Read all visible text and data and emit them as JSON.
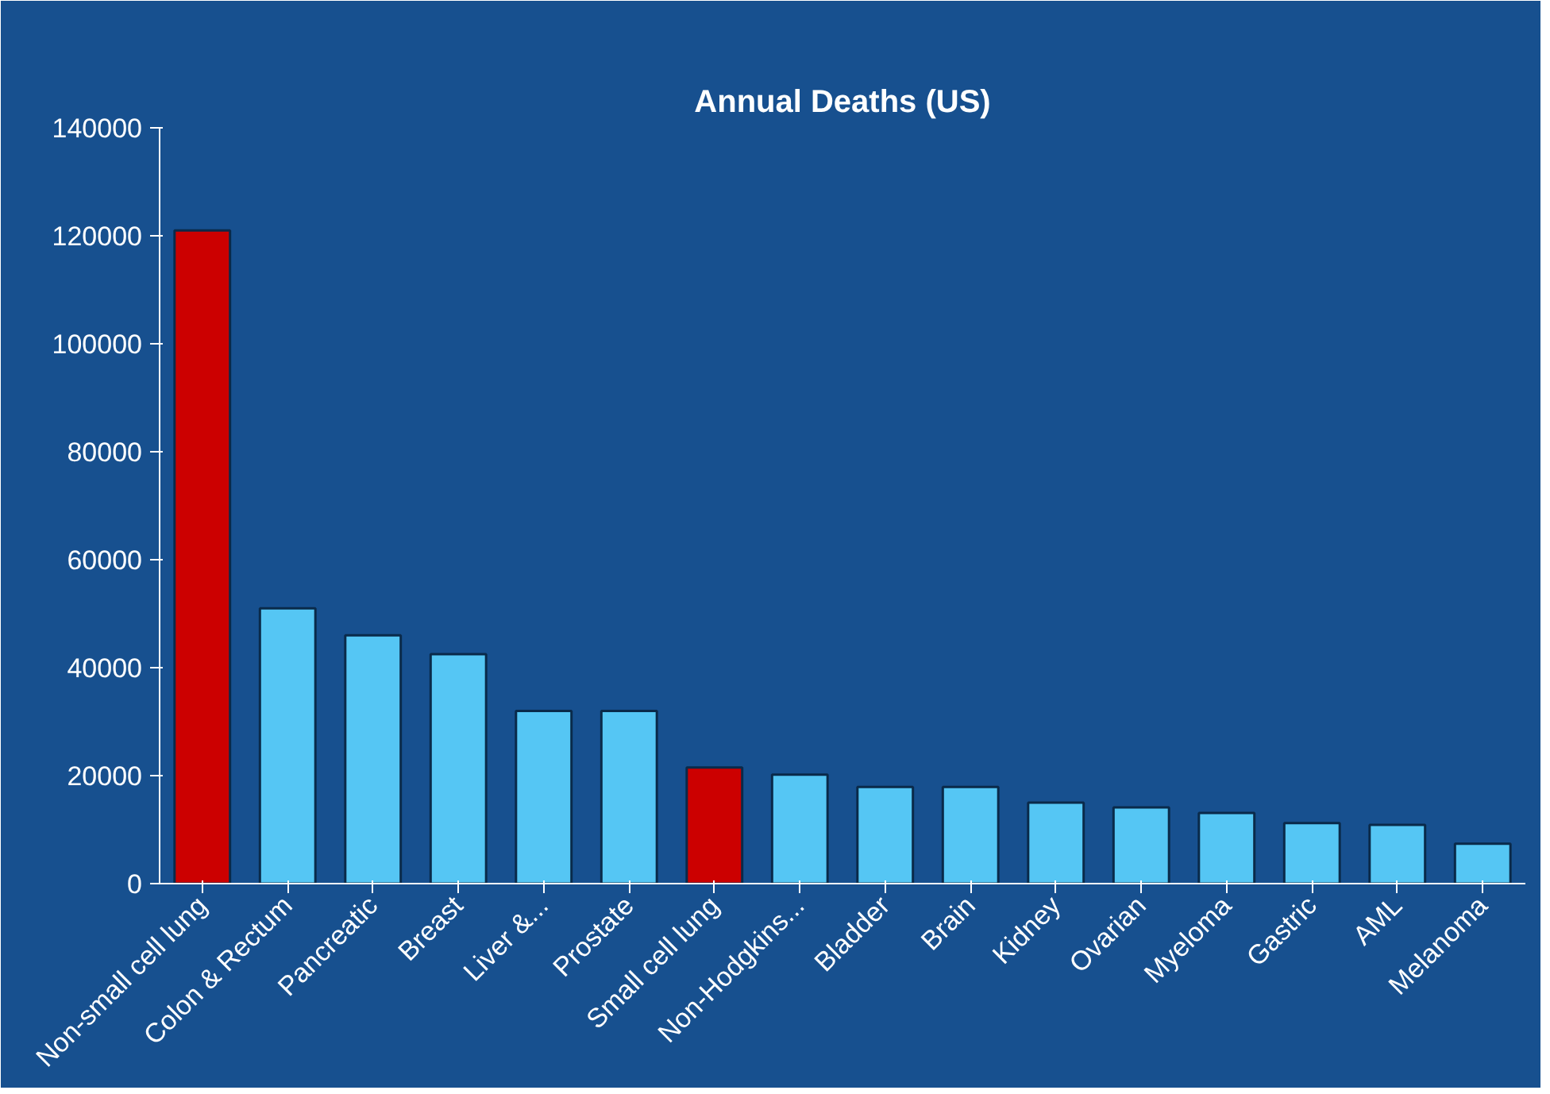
{
  "chart_data": {
    "type": "bar",
    "title": "Annual Deaths (US)",
    "categories": [
      "Non-small cell lung",
      "Colon & Rectum",
      "Pancreatic",
      "Breast",
      "Liver &...",
      "Prostate",
      "Small cell lung",
      "Non-Hodgkins...",
      "Bladder",
      "Brain",
      "Kidney",
      "Ovarian",
      "Myeloma",
      "Gastric",
      "AML",
      "Melanoma"
    ],
    "values": [
      121000,
      51000,
      46000,
      42500,
      32000,
      32000,
      21500,
      20200,
      17900,
      17900,
      15000,
      14100,
      13100,
      11200,
      10900,
      7400
    ],
    "colors": [
      "#cc0000",
      "#55c6f4",
      "#55c6f4",
      "#55c6f4",
      "#55c6f4",
      "#55c6f4",
      "#cc0000",
      "#55c6f4",
      "#55c6f4",
      "#55c6f4",
      "#55c6f4",
      "#55c6f4",
      "#55c6f4",
      "#55c6f4",
      "#55c6f4",
      "#55c6f4"
    ],
    "ylim": [
      0,
      140000
    ],
    "yticks": [
      0,
      20000,
      40000,
      60000,
      80000,
      100000,
      120000,
      140000
    ],
    "grid": false
  }
}
